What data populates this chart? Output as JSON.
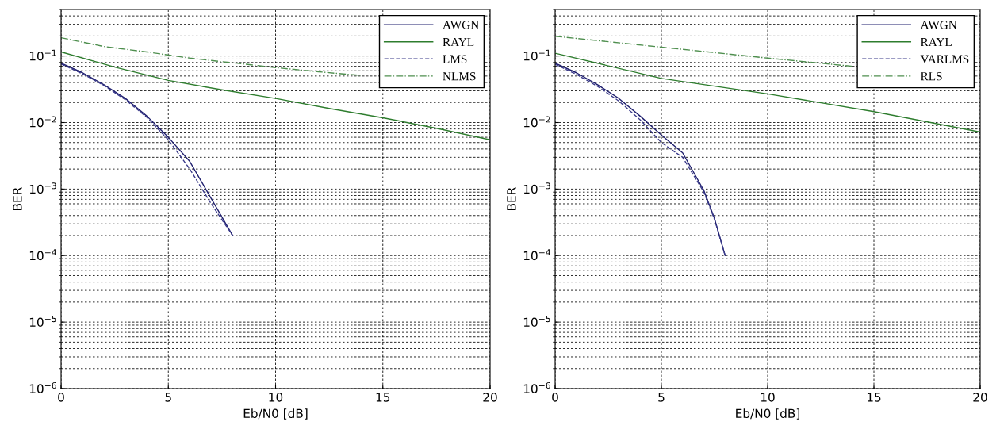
{
  "chart_data": [
    {
      "type": "line",
      "xlabel": "Eb/N0 [dB]",
      "ylabel": "BER",
      "log": "y",
      "grid": true,
      "legend": "top right",
      "xlim": [
        0,
        20
      ],
      "xticks": [
        0,
        5,
        10,
        15,
        20
      ],
      "ylim": [
        1e-06,
        0.5
      ],
      "yticks": [
        {
          "value": 1e-06,
          "label": "10$^{−6}$"
        },
        {
          "value": 1e-05,
          "label": "10$^{−5}$"
        },
        {
          "value": 0.0001,
          "label": "10$^{−4}$"
        },
        {
          "value": 0.001,
          "label": "10$^{−3}$"
        },
        {
          "value": 0.01,
          "label": "10$^{−2}$"
        },
        {
          "value": 0.1,
          "label": "10$^{−1}$"
        }
      ],
      "series": [
        {
          "name": "AWGN",
          "color": "#1f1f6e",
          "line_style": "solid",
          "x": [
            0,
            1,
            2,
            3,
            4,
            5,
            6,
            7,
            8
          ],
          "values": [
            0.078,
            0.056,
            0.037,
            0.023,
            0.0125,
            0.006,
            0.0026,
            0.00072,
            0.0002
          ]
        },
        {
          "name": "RAYL",
          "color": "#2e7d2e",
          "line_style": "solid",
          "x": [
            0,
            2.5,
            5,
            7.5,
            10,
            12.5,
            15,
            17.5,
            20
          ],
          "values": [
            0.115,
            0.068,
            0.043,
            0.031,
            0.023,
            0.0163,
            0.0118,
            0.0082,
            0.0055
          ]
        },
        {
          "name": "LMS",
          "color": "#3a3a8a",
          "line_style": "dashed",
          "x": [
            0,
            1,
            2,
            3,
            4,
            5,
            6,
            7,
            8
          ],
          "values": [
            0.076,
            0.054,
            0.036,
            0.022,
            0.012,
            0.0055,
            0.002,
            0.0006,
            0.0002
          ]
        },
        {
          "name": "NLMS",
          "color": "#4f8f4f",
          "line_style": "dashdot",
          "x": [
            0,
            2,
            4,
            6,
            8,
            10,
            12,
            14
          ],
          "values": [
            0.188,
            0.139,
            0.115,
            0.093,
            0.079,
            0.067,
            0.058,
            0.051
          ]
        }
      ]
    },
    {
      "type": "line",
      "xlabel": "Eb/N0 [dB]",
      "ylabel": "BER",
      "log": "y",
      "grid": true,
      "legend": "top right",
      "xlim": [
        0,
        20
      ],
      "xticks": [
        0,
        5,
        10,
        15,
        20
      ],
      "ylim": [
        1e-06,
        0.5
      ],
      "yticks": [
        {
          "value": 1e-06,
          "label": "10$^{−6}$"
        },
        {
          "value": 1e-05,
          "label": "10$^{−5}$"
        },
        {
          "value": 0.0001,
          "label": "10$^{−4}$"
        },
        {
          "value": 0.001,
          "label": "10$^{−3}$"
        },
        {
          "value": 0.01,
          "label": "10$^{−2}$"
        },
        {
          "value": 0.1,
          "label": "10$^{−1}$"
        }
      ],
      "series": [
        {
          "name": "AWGN",
          "color": "#1f1f6e",
          "line_style": "solid",
          "x": [
            0,
            1,
            2,
            3,
            4,
            5,
            6,
            7,
            7.5,
            8
          ],
          "values": [
            0.078,
            0.056,
            0.037,
            0.023,
            0.0125,
            0.0065,
            0.0035,
            0.00095,
            0.00036,
            0.0001
          ]
        },
        {
          "name": "RAYL",
          "color": "#2e7d2e",
          "line_style": "solid",
          "x": [
            0,
            5,
            10,
            15,
            20
          ],
          "values": [
            0.11,
            0.046,
            0.027,
            0.0146,
            0.0072
          ]
        },
        {
          "name": "VARLMS",
          "color": "#3a3a8a",
          "line_style": "dashed",
          "x": [
            0,
            1,
            2,
            3,
            4,
            5,
            6,
            7,
            7.5,
            8
          ],
          "values": [
            0.075,
            0.053,
            0.035,
            0.021,
            0.011,
            0.005,
            0.003,
            0.0009,
            0.00035,
            0.0001
          ]
        },
        {
          "name": "RLS",
          "color": "#4f8f4f",
          "line_style": "dashdot",
          "x": [
            0,
            5,
            10,
            14
          ],
          "values": [
            0.198,
            0.136,
            0.093,
            0.07
          ]
        }
      ]
    }
  ]
}
